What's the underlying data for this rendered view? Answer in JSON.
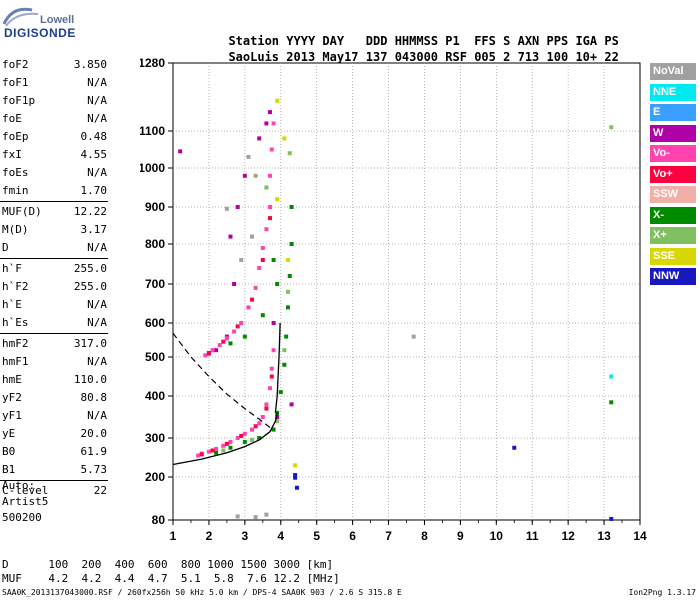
{
  "logo": {
    "line1": "Lowell",
    "line2": "DIGISONDE"
  },
  "header": {
    "labels": [
      "Station",
      "YYYY",
      "DAY",
      "DDD",
      "HHMMSS",
      "P1",
      "FFS",
      "S",
      "AXN",
      "PPS",
      "IGA",
      "PS"
    ],
    "values": [
      "SaoLuis",
      "2013",
      "May17",
      "137",
      "043000",
      "RSF",
      "005",
      "2",
      "713",
      "100",
      "10+",
      "22"
    ]
  },
  "params": [
    {
      "label": "foF2",
      "value": "3.850"
    },
    {
      "label": "foF1",
      "value": "N/A"
    },
    {
      "label": "foF1p",
      "value": "N/A"
    },
    {
      "label": "foE",
      "value": "N/A"
    },
    {
      "label": "foEp",
      "value": "0.48"
    },
    {
      "label": "fxI",
      "value": "4.55"
    },
    {
      "label": "foEs",
      "value": "N/A"
    },
    {
      "label": "fmin",
      "value": "1.70"
    },
    {
      "label": "MUF(D)",
      "value": "12.22"
    },
    {
      "label": "M(D)",
      "value": "3.17"
    },
    {
      "label": "D",
      "value": "N/A"
    },
    {
      "label": "h`F",
      "value": "255.0"
    },
    {
      "label": "h`F2",
      "value": "255.0"
    },
    {
      "label": "h`E",
      "value": "N/A"
    },
    {
      "label": "h`Es",
      "value": "N/A"
    },
    {
      "label": "hmF2",
      "value": "317.0"
    },
    {
      "label": "hmF1",
      "value": "N/A"
    },
    {
      "label": "hmE",
      "value": "110.0"
    },
    {
      "label": "yF2",
      "value": "80.8"
    },
    {
      "label": "yF1",
      "value": "N/A"
    },
    {
      "label": "yE",
      "value": "20.0"
    },
    {
      "label": "B0",
      "value": "61.9"
    },
    {
      "label": "B1",
      "value": "5.73"
    },
    {
      "label": "C-level",
      "value": "22"
    }
  ],
  "auto": {
    "label": "Auto:",
    "artist": "Artist5",
    "version": "500200"
  },
  "legend": [
    {
      "name": "NoVal",
      "color": "#a0a0a0"
    },
    {
      "name": "NNE",
      "color": "#00e8f0"
    },
    {
      "name": "E",
      "color": "#3aa0ff"
    },
    {
      "name": "W",
      "color": "#b000a8"
    },
    {
      "name": "Vo-",
      "color": "#ff44b0"
    },
    {
      "name": "Vo+",
      "color": "#ff0040"
    },
    {
      "name": "SSW",
      "color": "#f0b0a8"
    },
    {
      "name": "X-",
      "color": "#008a00"
    },
    {
      "name": "X+",
      "color": "#80c060"
    },
    {
      "name": "SSE",
      "color": "#d8d800"
    },
    {
      "name": "NNW",
      "color": "#1818c0"
    }
  ],
  "muf_table": {
    "d_label": "D",
    "d_values": [
      "100",
      "200",
      "400",
      "600",
      "800",
      "1000",
      "1500",
      "3000"
    ],
    "d_unit": "[km]",
    "muf_label": "MUF",
    "muf_values": [
      "4.2",
      "4.2",
      "4.4",
      "4.7",
      "5.1",
      "5.8",
      "7.6",
      "12.2"
    ],
    "muf_unit": "[MHz]"
  },
  "footer_left": "SAA0K_2013137043000.RSF / 260fx256h 50 kHz 5.0 km / DPS-4 SAA0K 903 / 2.6 S 315.8 E",
  "footer_right": "Ion2Png 1.3.17",
  "chart_data": {
    "type": "scatter",
    "title": "",
    "xlabel": "",
    "ylabel": "",
    "xlim": [
      1,
      14
    ],
    "ylim": [
      80,
      1280
    ],
    "x_ticks": [
      1,
      2,
      3,
      4,
      5,
      6,
      7,
      8,
      9,
      10,
      11,
      12,
      13,
      14
    ],
    "y_ticks": [
      80,
      200,
      300,
      400,
      500,
      600,
      700,
      800,
      900,
      1000,
      1100,
      1280
    ],
    "y_scale": "nonlinear",
    "grid": true,
    "series": [
      {
        "name": "W",
        "color": "#b000a8",
        "points": [
          [
            1.2,
            1045
          ],
          [
            2.0,
            510
          ],
          [
            2.2,
            520
          ],
          [
            2.5,
            560
          ],
          [
            2.6,
            820
          ],
          [
            2.7,
            700
          ],
          [
            2.8,
            900
          ],
          [
            3.0,
            980
          ],
          [
            3.4,
            1080
          ],
          [
            3.6,
            1120
          ],
          [
            3.7,
            1150
          ],
          [
            3.8,
            600
          ],
          [
            3.9,
            350
          ],
          [
            4.3,
            380
          ]
        ]
      },
      {
        "name": "Vo-",
        "color": "#ff44b0",
        "points": [
          [
            1.7,
            255
          ],
          [
            1.8,
            260
          ],
          [
            2.0,
            265
          ],
          [
            2.2,
            272
          ],
          [
            2.4,
            280
          ],
          [
            2.6,
            290
          ],
          [
            2.8,
            300
          ],
          [
            3.0,
            310
          ],
          [
            3.2,
            320
          ],
          [
            3.4,
            335
          ],
          [
            3.5,
            350
          ],
          [
            3.6,
            380
          ],
          [
            3.7,
            420
          ],
          [
            3.75,
            470
          ],
          [
            3.8,
            520
          ],
          [
            1.9,
            505
          ],
          [
            2.1,
            520
          ],
          [
            2.3,
            535
          ],
          [
            2.5,
            555
          ],
          [
            2.7,
            575
          ],
          [
            2.9,
            600
          ],
          [
            3.1,
            640
          ],
          [
            3.3,
            690
          ],
          [
            3.4,
            740
          ],
          [
            3.5,
            790
          ],
          [
            3.6,
            840
          ],
          [
            3.7,
            900
          ],
          [
            3.7,
            980
          ],
          [
            3.75,
            1050
          ],
          [
            3.8,
            1120
          ]
        ]
      },
      {
        "name": "Vo+",
        "color": "#ff0040",
        "points": [
          [
            1.8,
            258
          ],
          [
            2.1,
            268
          ],
          [
            2.5,
            285
          ],
          [
            2.9,
            305
          ],
          [
            3.3,
            328
          ],
          [
            3.6,
            370
          ],
          [
            3.75,
            450
          ],
          [
            2.0,
            512
          ],
          [
            2.4,
            545
          ],
          [
            2.8,
            590
          ],
          [
            3.2,
            660
          ],
          [
            3.5,
            760
          ],
          [
            3.7,
            870
          ]
        ]
      },
      {
        "name": "X-",
        "color": "#008a00",
        "points": [
          [
            2.2,
            262
          ],
          [
            2.6,
            275
          ],
          [
            3.0,
            290
          ],
          [
            3.4,
            300
          ],
          [
            3.8,
            320
          ],
          [
            3.9,
            360
          ],
          [
            4.0,
            410
          ],
          [
            4.1,
            480
          ],
          [
            4.15,
            560
          ],
          [
            4.2,
            640
          ],
          [
            4.25,
            720
          ],
          [
            4.3,
            800
          ],
          [
            4.3,
            900
          ],
          [
            3.9,
            700
          ],
          [
            3.8,
            760
          ],
          [
            3.5,
            620
          ],
          [
            3.0,
            560
          ],
          [
            2.6,
            540
          ],
          [
            13.2,
            385
          ]
        ]
      },
      {
        "name": "X+",
        "color": "#80c060",
        "points": [
          [
            2.4,
            268
          ],
          [
            3.2,
            295
          ],
          [
            3.9,
            340
          ],
          [
            4.1,
            520
          ],
          [
            4.2,
            680
          ],
          [
            3.6,
            950
          ],
          [
            4.25,
            1040
          ],
          [
            13.2,
            1110
          ]
        ]
      },
      {
        "name": "SSE",
        "color": "#d8d800",
        "points": [
          [
            3.9,
            1180
          ],
          [
            4.1,
            1080
          ],
          [
            4.2,
            760
          ],
          [
            3.9,
            920
          ],
          [
            4.4,
            230
          ]
        ]
      },
      {
        "name": "NNW",
        "color": "#1818c0",
        "points": [
          [
            4.4,
            205
          ],
          [
            4.4,
            198
          ],
          [
            4.45,
            170
          ],
          [
            10.5,
            275
          ],
          [
            13.2,
            83
          ]
        ]
      },
      {
        "name": "NNE",
        "color": "#00e8f0",
        "points": [
          [
            13.2,
            450
          ]
        ]
      },
      {
        "name": "NoVal",
        "color": "#a0a0a0",
        "points": [
          [
            2.5,
            895
          ],
          [
            3.1,
            1030
          ],
          [
            3.3,
            980
          ],
          [
            2.9,
            760
          ],
          [
            3.2,
            820
          ],
          [
            7.7,
            560
          ],
          [
            2.8,
            90
          ],
          [
            3.3,
            88
          ],
          [
            3.6,
            95
          ]
        ]
      }
    ],
    "profile_curve": [
      [
        1.0,
        232
      ],
      [
        1.8,
        246
      ],
      [
        2.5,
        262
      ],
      [
        3.0,
        278
      ],
      [
        3.4,
        295
      ],
      [
        3.7,
        315
      ],
      [
        3.85,
        340
      ],
      [
        3.9,
        360
      ]
    ],
    "extrapolated_curve": [
      [
        1.0,
        570
      ],
      [
        1.5,
        500
      ],
      [
        2.0,
        450
      ],
      [
        2.5,
        405
      ],
      [
        3.0,
        370
      ],
      [
        3.4,
        345
      ],
      [
        3.7,
        325
      ]
    ],
    "trace_curve": [
      [
        3.85,
        360
      ],
      [
        3.9,
        400
      ],
      [
        3.92,
        440
      ],
      [
        3.95,
        500
      ],
      [
        3.97,
        560
      ],
      [
        3.98,
        600
      ]
    ]
  }
}
